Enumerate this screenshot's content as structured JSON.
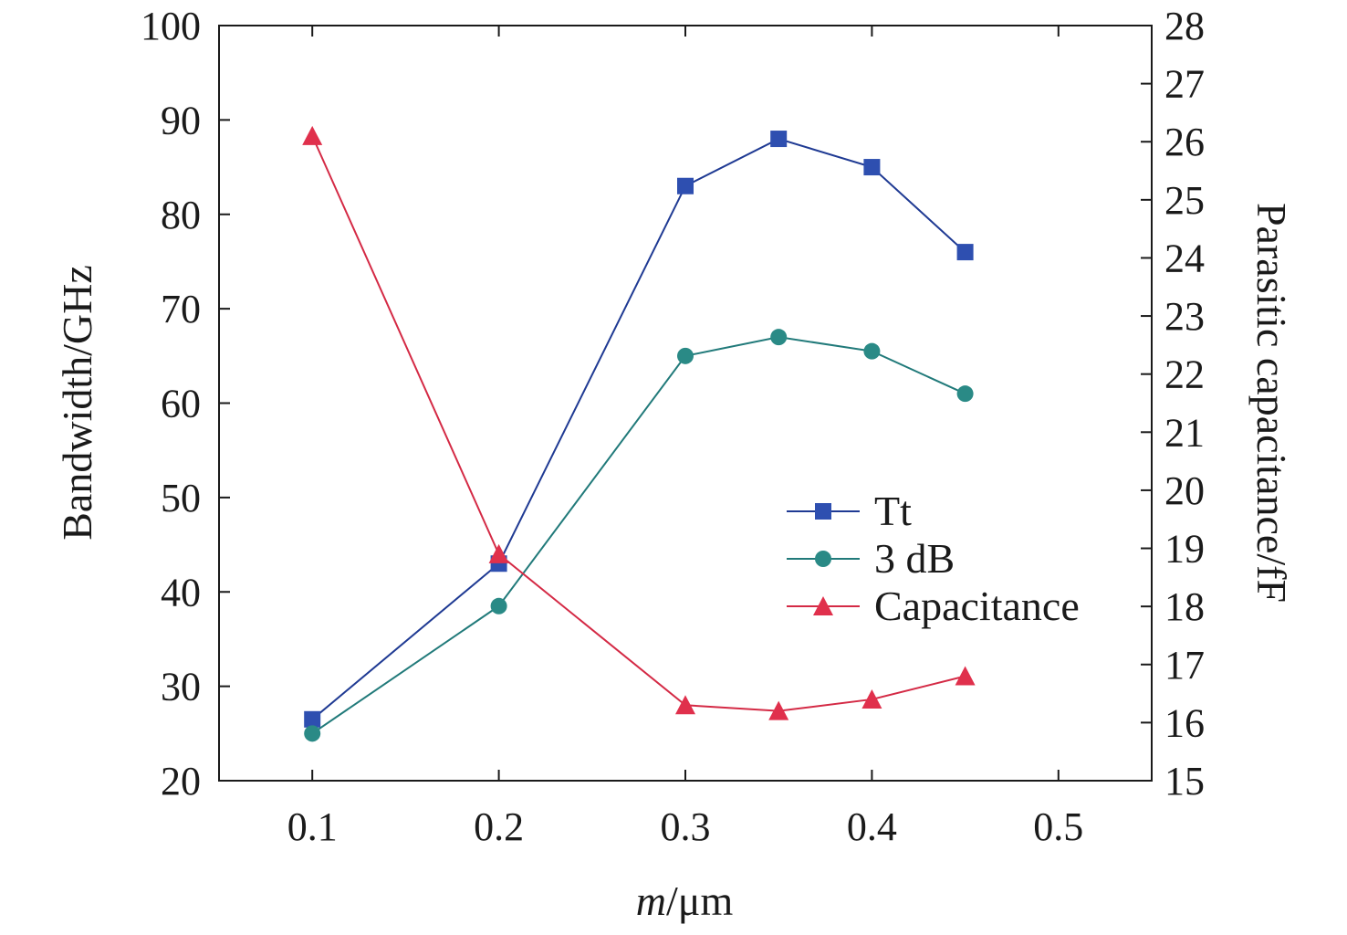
{
  "chart_data": {
    "type": "line",
    "x": [
      0.1,
      0.2,
      0.3,
      0.35,
      0.4,
      0.45
    ],
    "xlim": [
      0.05,
      0.55
    ],
    "xticks": [
      "0.1",
      "0.2",
      "0.3",
      "0.4",
      "0.5"
    ],
    "xtick_values": [
      0.1,
      0.2,
      0.3,
      0.4,
      0.5
    ],
    "xlabel_italic": "m",
    "xlabel_rest": "/μm",
    "ylabel": "Bandwidth/GHz",
    "ylim": [
      20,
      100
    ],
    "yticks": [
      "20",
      "30",
      "40",
      "50",
      "60",
      "70",
      "80",
      "90",
      "100"
    ],
    "ytick_values": [
      20,
      30,
      40,
      50,
      60,
      70,
      80,
      90,
      100
    ],
    "y2label": "Parasitic capacitance/fF",
    "y2lim": [
      15,
      28
    ],
    "y2ticks": [
      "15",
      "16",
      "17",
      "18",
      "19",
      "20",
      "21",
      "22",
      "23",
      "24",
      "25",
      "26",
      "27",
      "28"
    ],
    "y2tick_values": [
      15,
      16,
      17,
      18,
      19,
      20,
      21,
      22,
      23,
      24,
      25,
      26,
      27,
      28
    ],
    "grid": false,
    "legend_position": "center-right",
    "series": [
      {
        "name": "Tt",
        "axis": "left",
        "marker": "square",
        "color": "#1f3a93",
        "markerColor": "#2e4fb0",
        "values": [
          26.5,
          43,
          83,
          88,
          85,
          76
        ]
      },
      {
        "name": "3 dB",
        "axis": "left",
        "marker": "circle",
        "color": "#217a7a",
        "markerColor": "#2a8a86",
        "values": [
          25,
          38.5,
          65,
          67,
          65.5,
          61
        ]
      },
      {
        "name": "Capacitance",
        "axis": "right",
        "marker": "triangle",
        "color": "#d42a45",
        "markerColor": "#e0304c",
        "values": [
          26.1,
          18.9,
          16.3,
          16.2,
          16.4,
          16.8
        ]
      }
    ]
  }
}
